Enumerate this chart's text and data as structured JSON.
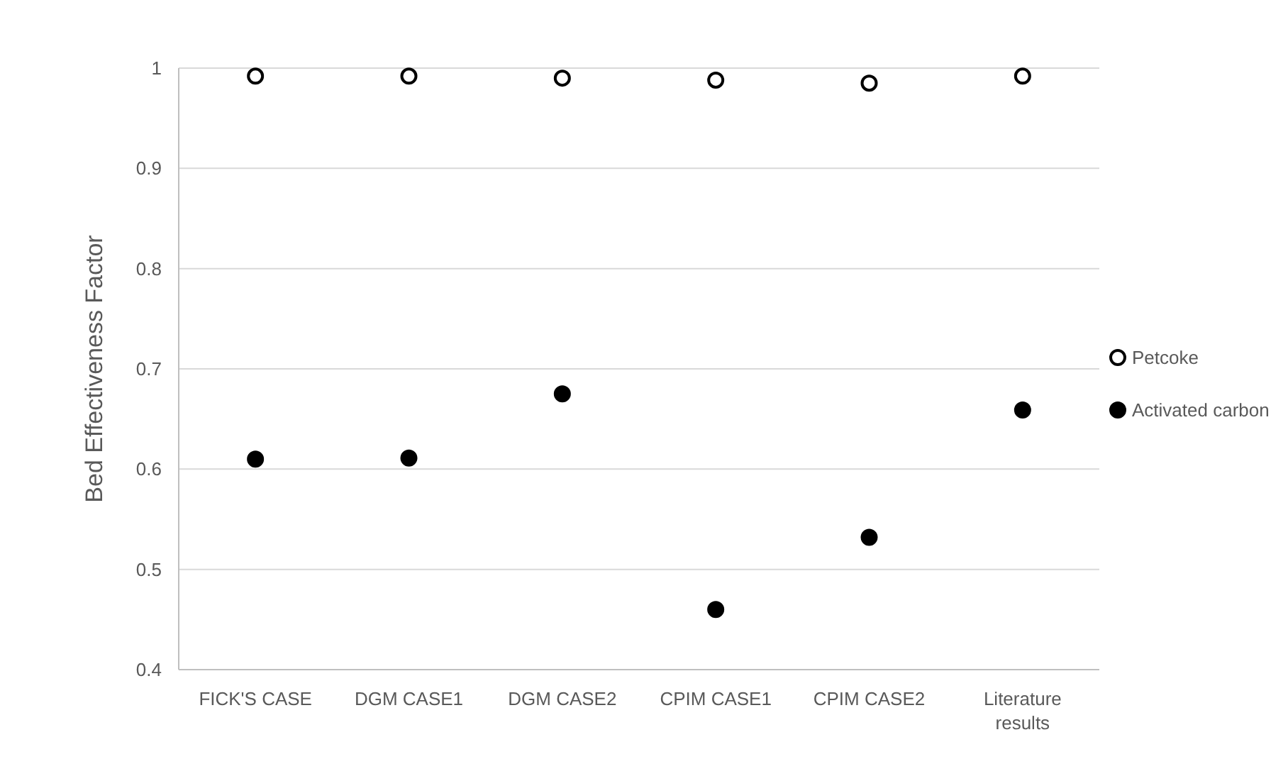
{
  "chart_data": {
    "type": "scatter",
    "ylabel": "Bed Effectiveness Factor",
    "categories": [
      "FICK'S CASE",
      "DGM CASE1",
      "DGM CASE2",
      "CPIM CASE1",
      "CPIM CASE2",
      "Literature results"
    ],
    "series": [
      {
        "name": "Petcoke",
        "color": "#000000",
        "marker": "open_circle",
        "values": [
          0.992,
          0.992,
          0.99,
          0.988,
          0.985,
          0.992
        ]
      },
      {
        "name": "Activated carbon",
        "color": "#000000",
        "marker": "circle",
        "values": [
          0.61,
          0.611,
          0.675,
          0.46,
          0.532,
          0.659
        ]
      }
    ],
    "ylim": [
      0.4,
      1
    ],
    "yticks": [
      0.4,
      0.5,
      0.6,
      0.7,
      0.8,
      0.9,
      1
    ],
    "grid": "y",
    "legend": "right"
  }
}
